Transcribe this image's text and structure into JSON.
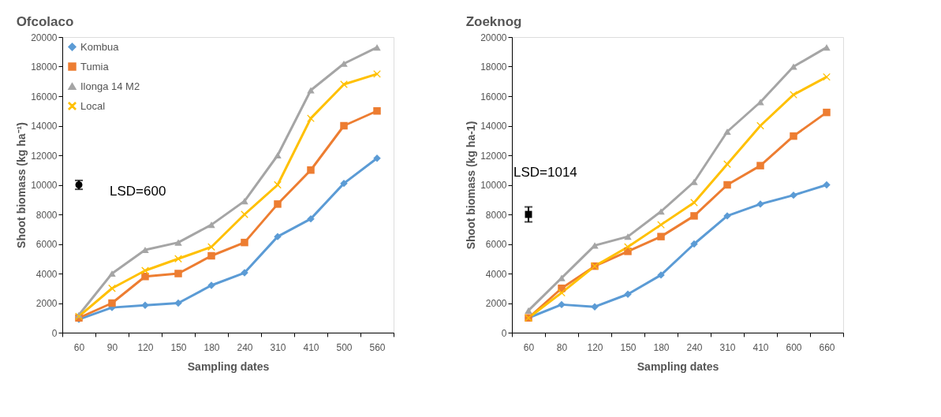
{
  "chart_data": [
    {
      "type": "line",
      "title": "Ofcolaco",
      "xlabel": "Sampling dates",
      "ylabel": "Shoot biomass (kg ha⁻¹)",
      "categories": [
        "60",
        "90",
        "120",
        "150",
        "180",
        "240",
        "310",
        "410",
        "500",
        "560"
      ],
      "ylim": [
        0,
        20000
      ],
      "yticks": [
        0,
        2000,
        4000,
        6000,
        8000,
        10000,
        12000,
        14000,
        16000,
        18000,
        20000
      ],
      "grid": false,
      "legend": "top left",
      "line_style": "solid",
      "annotations": [
        "LSD=600"
      ],
      "series": [
        {
          "name": "Kombua",
          "color": "#5b9bd5",
          "marker": "diamond",
          "values": [
            900,
            1700,
            1850,
            2000,
            3200,
            4050,
            6500,
            7700,
            10100,
            11800
          ]
        },
        {
          "name": "Tumia",
          "color": "#ed7d31",
          "marker": "square",
          "values": [
            1000,
            2000,
            3800,
            4000,
            5200,
            6100,
            8700,
            11000,
            14000,
            15000
          ]
        },
        {
          "name": "Ilonga 14 M2",
          "color": "#a5a5a5",
          "marker": "triangle",
          "values": [
            1200,
            4000,
            5600,
            6100,
            7300,
            8900,
            12000,
            16400,
            18200,
            19300
          ]
        },
        {
          "name": "Local",
          "color": "#ffc000",
          "marker": "cross",
          "values": [
            1100,
            3000,
            4200,
            5000,
            5800,
            8000,
            10000,
            14500,
            16800,
            17500
          ]
        },
        {
          "type": "scatter",
          "color": "#000000",
          "marker": "circle",
          "x": [
            "60"
          ],
          "values": [
            10000
          ],
          "errors": [
            300
          ]
        }
      ]
    },
    {
      "type": "line",
      "title": "Zoeknog",
      "xlabel": "Sampling dates",
      "ylabel": "Shoot biomass (kg ha-1)",
      "categories": [
        "60",
        "80",
        "120",
        "150",
        "180",
        "240",
        "310",
        "410",
        "600",
        "660"
      ],
      "ylim": [
        0,
        20000
      ],
      "yticks": [
        0,
        2000,
        4000,
        6000,
        8000,
        10000,
        12000,
        14000,
        16000,
        18000,
        20000
      ],
      "grid": false,
      "line_style": "solid",
      "annotations": [
        "LSD=1014"
      ],
      "series": [
        {
          "name": "Kombua",
          "color": "#5b9bd5",
          "marker": "diamond",
          "values": [
            1000,
            1900,
            1750,
            2600,
            3900,
            6000,
            7900,
            8700,
            9300,
            10000
          ]
        },
        {
          "name": "Tumia",
          "color": "#ed7d31",
          "marker": "square",
          "values": [
            1000,
            3000,
            4500,
            5500,
            6500,
            7900,
            10000,
            11300,
            13300,
            14900
          ]
        },
        {
          "name": "Ilonga 14 M2",
          "color": "#a5a5a5",
          "marker": "triangle",
          "values": [
            1500,
            3700,
            5900,
            6500,
            8200,
            10200,
            13600,
            15600,
            18000,
            19300
          ]
        },
        {
          "name": "Local",
          "color": "#ffc000",
          "marker": "cross",
          "values": [
            1000,
            2700,
            4500,
            5800,
            7300,
            8800,
            11400,
            14000,
            16100,
            17300
          ]
        },
        {
          "type": "scatter",
          "color": "#000000",
          "marker": "square",
          "x": [
            "60"
          ],
          "values": [
            8000
          ],
          "errors": [
            507
          ]
        }
      ]
    }
  ]
}
